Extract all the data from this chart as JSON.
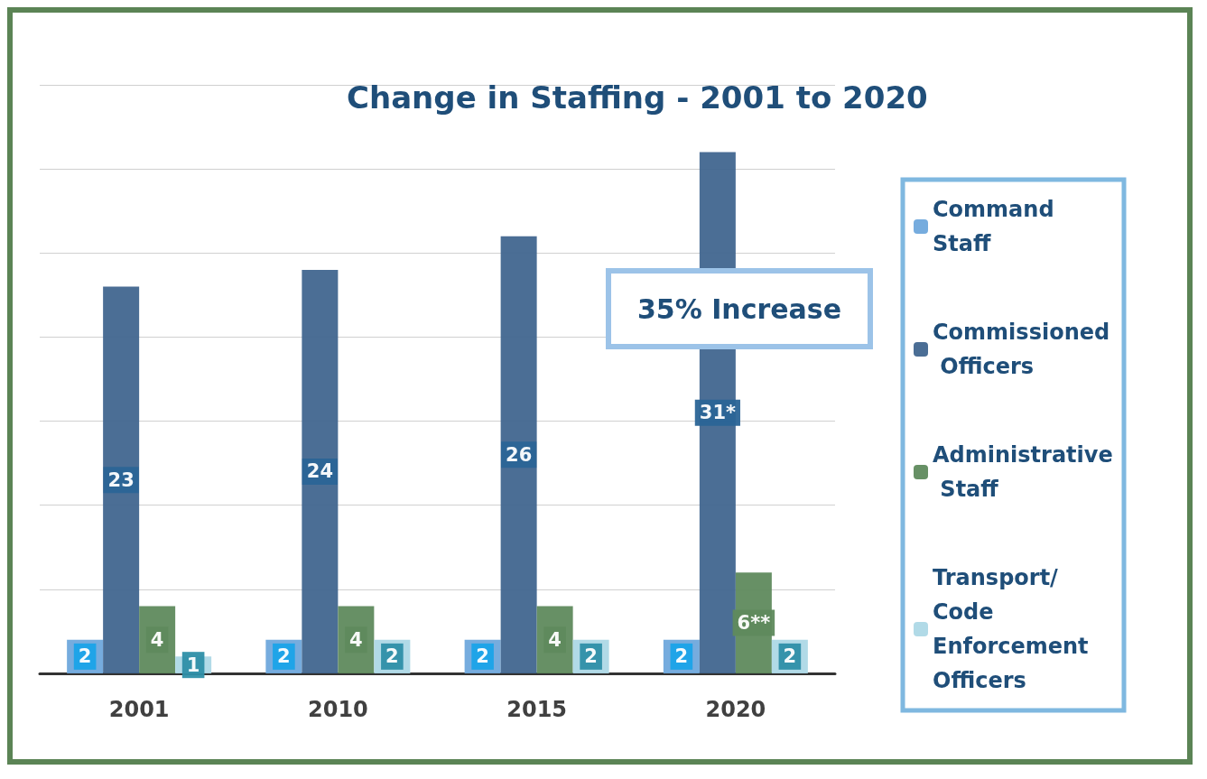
{
  "chart_data": {
    "type": "bar",
    "title": "Change in Staffing - 2001 to 2020",
    "categories": [
      "2001",
      "2010",
      "2015",
      "2020"
    ],
    "series": [
      {
        "name": "Command Staff",
        "color": "#6fa8dc",
        "values": [
          2,
          2,
          2,
          2
        ],
        "value_labels": [
          "2",
          "2",
          "2",
          "2"
        ]
      },
      {
        "name": "Commissioned Officers",
        "color": "#41668f",
        "values": [
          23,
          24,
          26,
          31
        ],
        "value_labels": [
          "23",
          "24",
          "26",
          "31*"
        ]
      },
      {
        "name": "Administrative Staff",
        "color": "#5f8a5d",
        "values": [
          4,
          4,
          4,
          6
        ],
        "value_labels": [
          "4",
          "4",
          "4",
          "6**"
        ]
      },
      {
        "name": "Transport/Code Enforcement Officers",
        "color": "#add8e6",
        "values": [
          1,
          2,
          2,
          2
        ],
        "value_labels": [
          "1",
          "2",
          "2",
          "2"
        ]
      }
    ],
    "ylim": [
      0,
      35
    ],
    "yticks": [
      {
        "value": 0,
        "label": null
      },
      {
        "value": 5,
        "label": null
      },
      {
        "value": 10,
        "label": null
      },
      {
        "value": 15,
        "label": null
      },
      {
        "value": 20,
        "label": null
      },
      {
        "value": 25,
        "label": null
      },
      {
        "value": 30,
        "label": null
      },
      {
        "value": 35,
        "label": null
      }
    ],
    "tick_labels": "x",
    "grid": "y",
    "legend": "right",
    "annotations": [
      "35% Increase"
    ]
  }
}
